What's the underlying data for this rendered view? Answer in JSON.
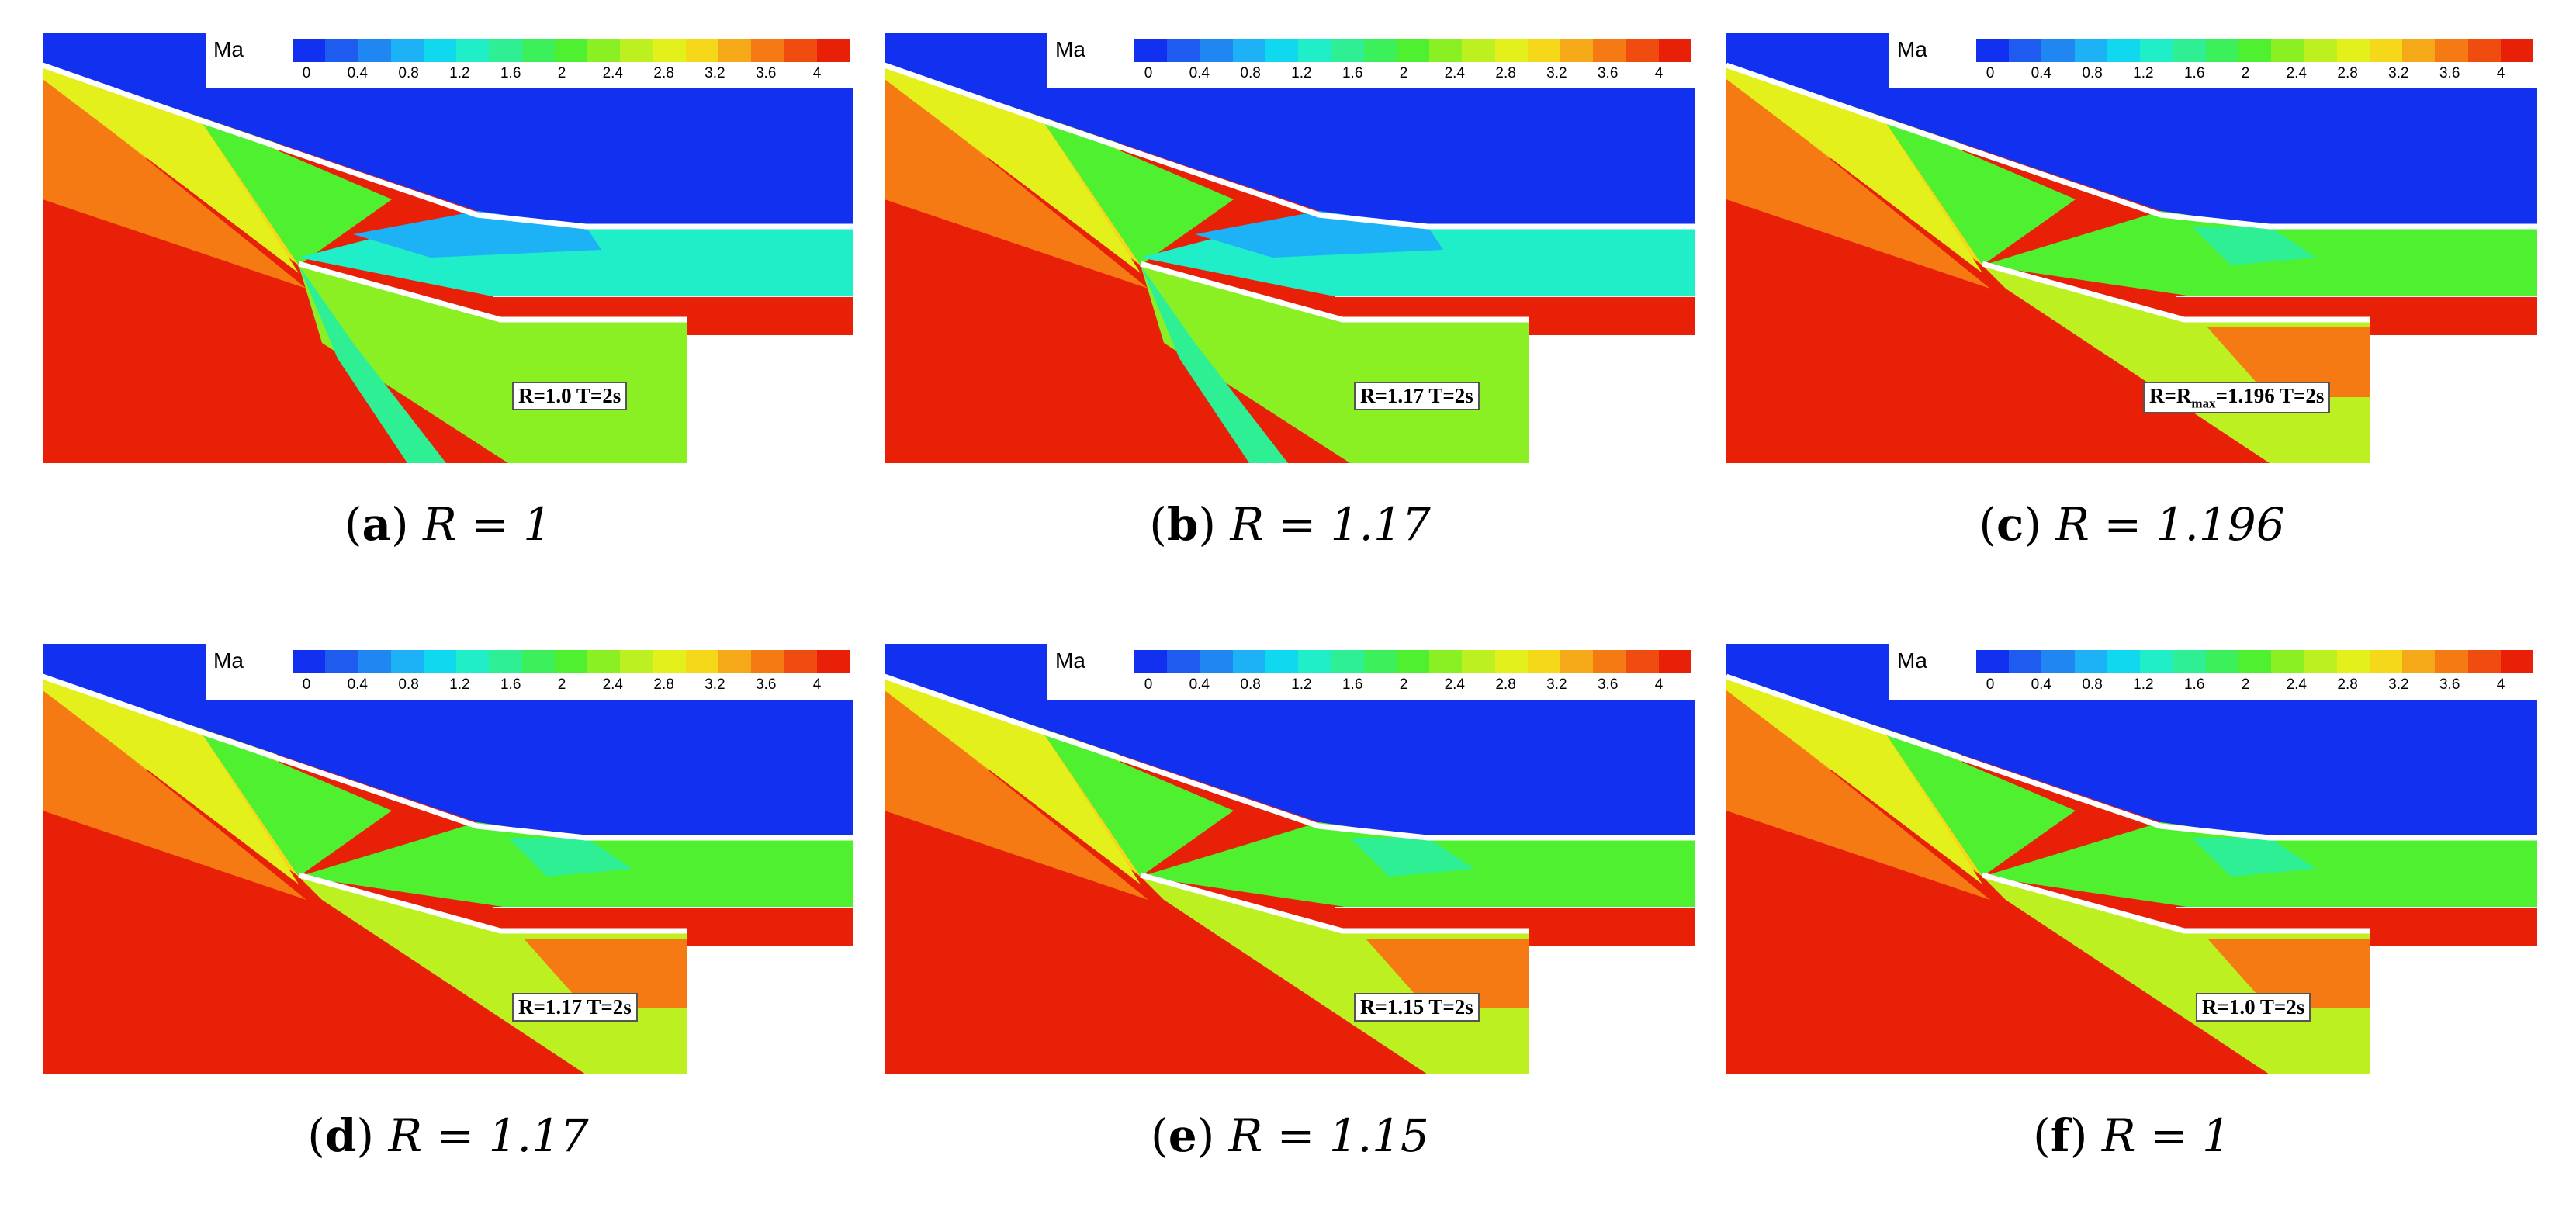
{
  "colorbar": {
    "variable": "Ma",
    "ticks": [
      "0",
      "0.4",
      "0.8",
      "1.2",
      "1.6",
      "2",
      "2.4",
      "2.8",
      "3.2",
      "3.6",
      "4"
    ],
    "range": [
      0,
      4
    ],
    "colors": [
      "#1230f0",
      "#1e5cf0",
      "#1f86f2",
      "#1cb2f5",
      "#10d8ef",
      "#20eec8",
      "#2fef94",
      "#3cf05c",
      "#4ef030",
      "#8af024",
      "#bdf020",
      "#e4f01c",
      "#f5d81a",
      "#f5a818",
      "#f57a14",
      "#f04c10",
      "#e82008"
    ]
  },
  "panels": [
    {
      "letter": "a",
      "run_label": "R=1.0 T=2s",
      "caption_eq": "R = 1",
      "style": "unstarted"
    },
    {
      "letter": "b",
      "run_label": "R=1.17 T=2s",
      "caption_eq": "R = 1.17",
      "style": "unstarted"
    },
    {
      "letter": "c",
      "run_label_parts": [
        "R=R",
        "max",
        "=1.196 T=2s"
      ],
      "caption_eq": "R = 1.196",
      "style": "started"
    },
    {
      "letter": "d",
      "run_label": "R=1.17 T=2s",
      "caption_eq": "R = 1.17",
      "style": "started"
    },
    {
      "letter": "e",
      "run_label": "R=1.15 T=2s",
      "caption_eq": "R = 1.15",
      "style": "started"
    },
    {
      "letter": "f",
      "run_label": "R=1.0 T=2s",
      "caption_eq": "R = 1",
      "style": "started"
    }
  ]
}
